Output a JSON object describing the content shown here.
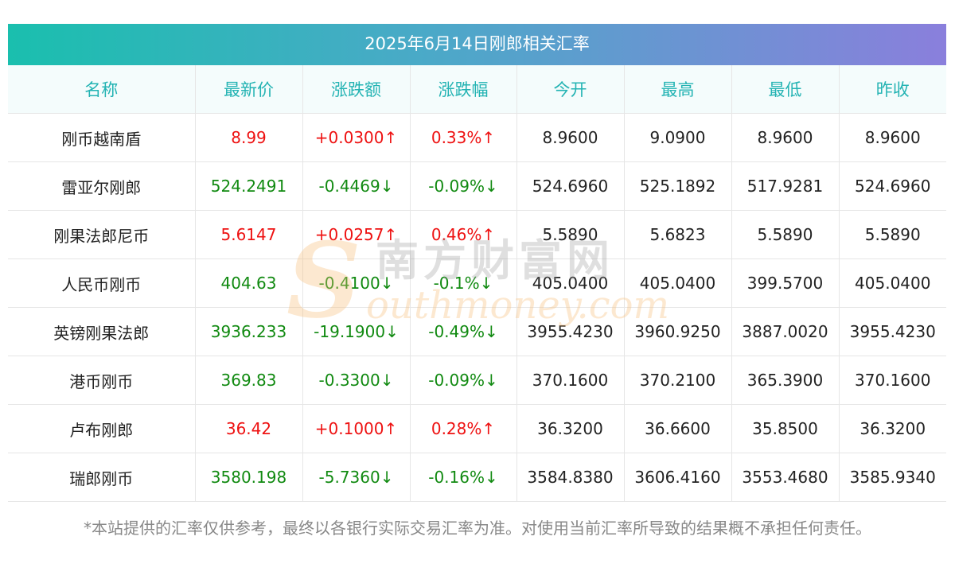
{
  "title": "2025年6月14日刚郎相关汇率",
  "columns": [
    "名称",
    "最新价",
    "涨跌额",
    "涨跌幅",
    "今开",
    "最高",
    "最低",
    "昨收"
  ],
  "rows": [
    {
      "name": "刚币越南盾",
      "latest": "8.99",
      "change": "+0.0300↑",
      "change_pct": "0.33%↑",
      "open": "8.9600",
      "high": "9.0900",
      "low": "8.9600",
      "prev_close": "8.9600",
      "direction": "up"
    },
    {
      "name": "雷亚尔刚郎",
      "latest": "524.2491",
      "change": "-0.4469↓",
      "change_pct": "-0.09%↓",
      "open": "524.6960",
      "high": "525.1892",
      "low": "517.9281",
      "prev_close": "524.6960",
      "direction": "down"
    },
    {
      "name": "刚果法郎尼币",
      "latest": "5.6147",
      "change": "+0.0257↑",
      "change_pct": "0.46%↑",
      "open": "5.5890",
      "high": "5.6823",
      "low": "5.5890",
      "prev_close": "5.5890",
      "direction": "up"
    },
    {
      "name": "人民币刚币",
      "latest": "404.63",
      "change": "-0.4100↓",
      "change_pct": "-0.1%↓",
      "open": "405.0400",
      "high": "405.0400",
      "low": "399.5700",
      "prev_close": "405.0400",
      "direction": "down"
    },
    {
      "name": "英镑刚果法郎",
      "latest": "3936.233",
      "change": "-19.1900↓",
      "change_pct": "-0.49%↓",
      "open": "3955.4230",
      "high": "3960.9250",
      "low": "3887.0020",
      "prev_close": "3955.4230",
      "direction": "down"
    },
    {
      "name": "港币刚币",
      "latest": "369.83",
      "change": "-0.3300↓",
      "change_pct": "-0.09%↓",
      "open": "370.1600",
      "high": "370.2100",
      "low": "365.3900",
      "prev_close": "370.1600",
      "direction": "down"
    },
    {
      "name": "卢布刚郎",
      "latest": "36.42",
      "change": "+0.1000↑",
      "change_pct": "0.28%↑",
      "open": "36.3200",
      "high": "36.6600",
      "low": "35.8500",
      "prev_close": "36.3200",
      "direction": "up"
    },
    {
      "name": "瑞郎刚币",
      "latest": "3580.198",
      "change": "-5.7360↓",
      "change_pct": "-0.16%↓",
      "open": "3584.8380",
      "high": "3606.4160",
      "low": "3553.4680",
      "prev_close": "3585.9340",
      "direction": "down"
    }
  ],
  "watermark": {
    "letter": "S",
    "cn": "南方财富网",
    "en": "outhmoney.com"
  },
  "disclaimer": "*本站提供的汇率仅供参考，最终以各银行实际交易汇率为准。对使用当前汇率所导致的结果概不承担任何责任。",
  "colors": {
    "header_gradient_start": "#1abfae",
    "header_gradient_end": "#8a7fdc",
    "column_header_text": "#23b3b3",
    "up": "#ee1111",
    "down": "#118a11"
  }
}
